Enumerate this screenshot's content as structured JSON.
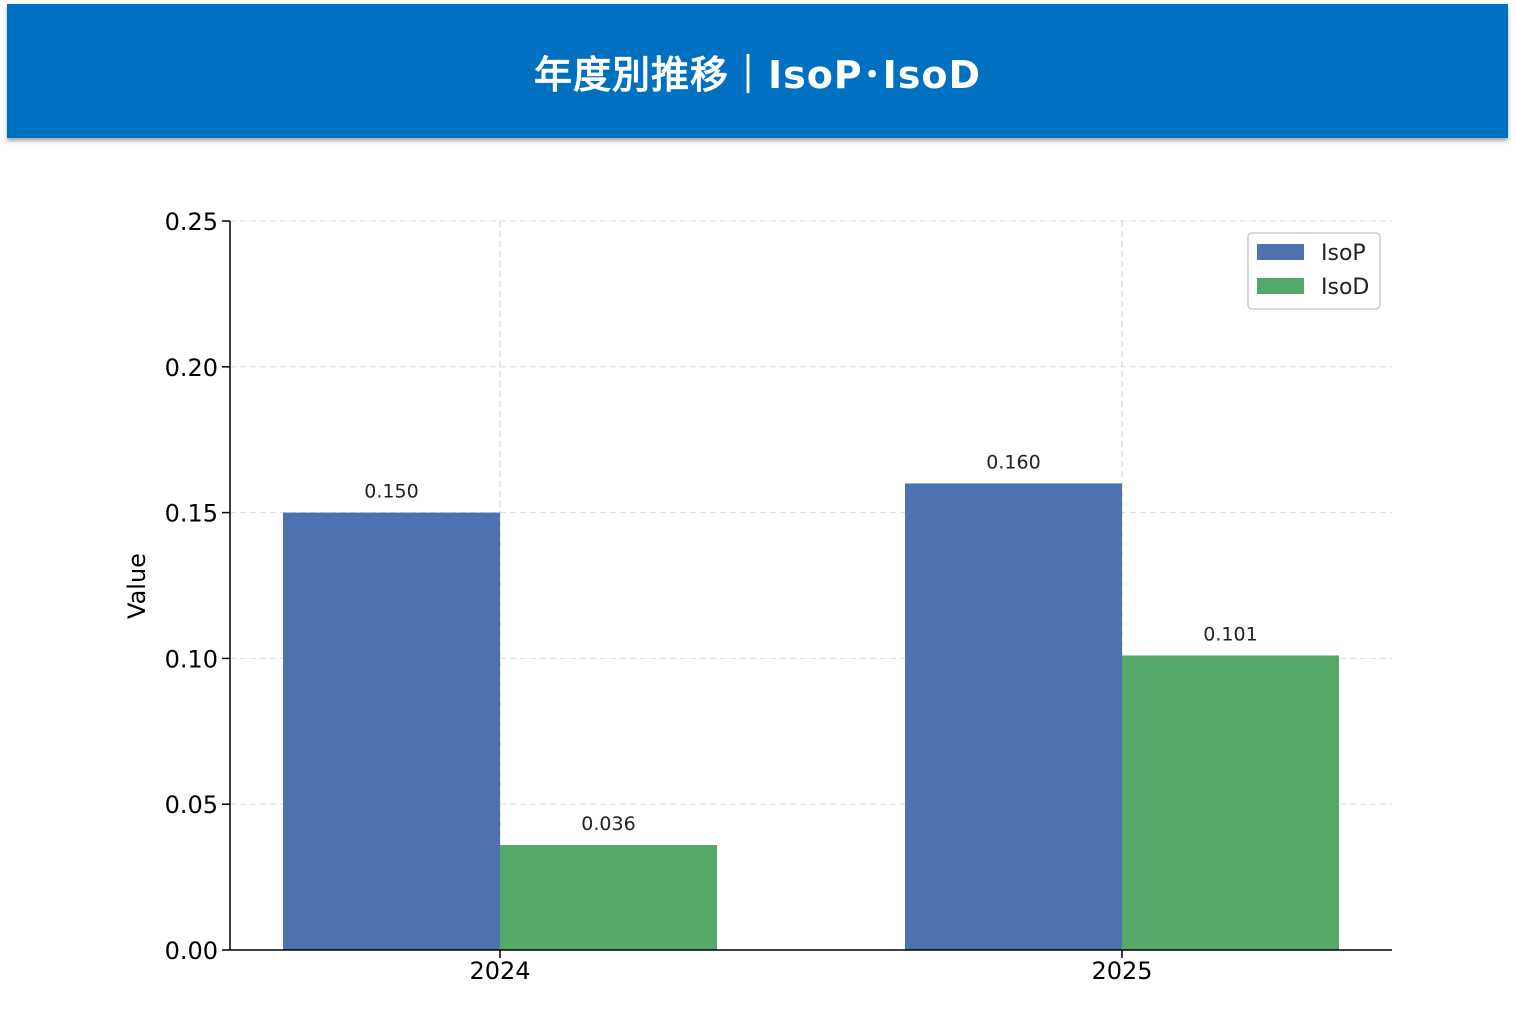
{
  "header": {
    "title": "年度別推移｜IsoP･IsoD",
    "background": "#0070c0"
  },
  "chart_data": {
    "type": "bar",
    "categories": [
      "2024",
      "2025"
    ],
    "series": [
      {
        "name": "IsoP",
        "values": [
          0.15,
          0.16
        ],
        "labels": [
          "0.150",
          "0.160"
        ],
        "color": "#4c72b0"
      },
      {
        "name": "IsoD",
        "values": [
          0.036,
          0.101
        ],
        "labels": [
          "0.036",
          "0.101"
        ],
        "color": "#55a868"
      }
    ],
    "ylabel": "Value",
    "ylim": [
      0,
      0.25
    ],
    "yticks": [
      0.0,
      0.05,
      0.1,
      0.15,
      0.2,
      0.25
    ],
    "ytick_labels": [
      "0.00",
      "0.05",
      "0.10",
      "0.15",
      "0.20",
      "0.25"
    ],
    "grid": true,
    "legend_position": "top-right"
  }
}
